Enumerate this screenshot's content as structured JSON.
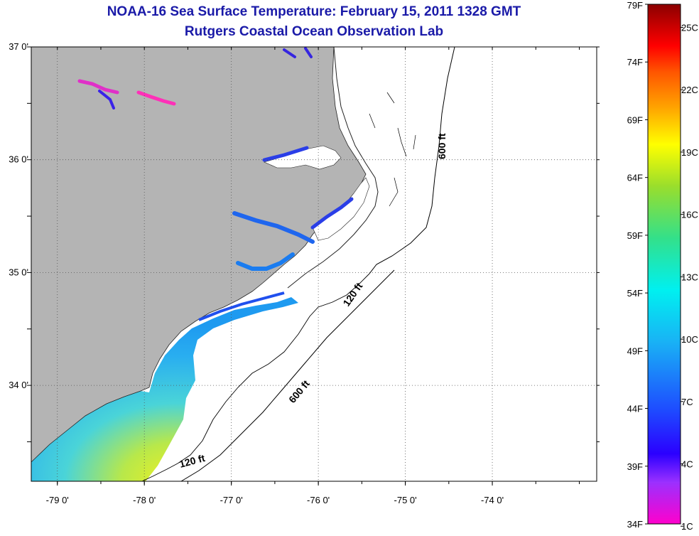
{
  "header": {
    "title": "NOAA-16 Sea Surface Temperature:  February 15, 2011 1328 GMT",
    "subtitle": "Rutgers Coastal Ocean Observation Lab"
  },
  "map": {
    "lat_ticks": [
      {
        "value": 37.0,
        "label": "37 0'"
      },
      {
        "value": 36.0,
        "label": "36 0'"
      },
      {
        "value": 35.0,
        "label": "35 0'"
      },
      {
        "value": 34.0,
        "label": "34 0'"
      }
    ],
    "lon_ticks": [
      {
        "value": -79.0,
        "label": "-79 0'"
      },
      {
        "value": -78.0,
        "label": "-78 0'"
      },
      {
        "value": -77.0,
        "label": "-77 0'"
      },
      {
        "value": -76.0,
        "label": "-76 0'"
      },
      {
        "value": -75.0,
        "label": "-75 0'"
      },
      {
        "value": -74.0,
        "label": "-74 0'"
      }
    ],
    "extent": {
      "lon_min": -79.3,
      "lon_max": -72.8,
      "lat_min": 33.15,
      "lat_max": 37.0
    },
    "grid": "dotted",
    "contour_labels": {
      "c600_north": "600 ft",
      "c120_mid": "120 ft",
      "c600_south": "600 ft",
      "c120_south": "120 ft"
    },
    "colors": {
      "land": "#b4b4b4",
      "ocean_no_data": "#ffffff",
      "contour": "#000000"
    }
  },
  "colorbar": {
    "fahrenheit": [
      {
        "value": 79,
        "label": "79F"
      },
      {
        "value": 74,
        "label": "74F"
      },
      {
        "value": 69,
        "label": "69F"
      },
      {
        "value": 64,
        "label": "64F"
      },
      {
        "value": 59,
        "label": "59F"
      },
      {
        "value": 54,
        "label": "54F"
      },
      {
        "value": 49,
        "label": "49F"
      },
      {
        "value": 44,
        "label": "44F"
      },
      {
        "value": 39,
        "label": "39F"
      },
      {
        "value": 34,
        "label": "34F"
      }
    ],
    "celsius": [
      {
        "value": 25,
        "label": "25C"
      },
      {
        "value": 22,
        "label": "22C"
      },
      {
        "value": 19,
        "label": "19C"
      },
      {
        "value": 16,
        "label": "16C"
      },
      {
        "value": 13,
        "label": "13C"
      },
      {
        "value": 10,
        "label": "10C"
      },
      {
        "value": 7,
        "label": "7C"
      },
      {
        "value": 4,
        "label": "4C"
      },
      {
        "value": 1,
        "label": "1C"
      }
    ],
    "range_f": [
      34,
      79
    ]
  }
}
